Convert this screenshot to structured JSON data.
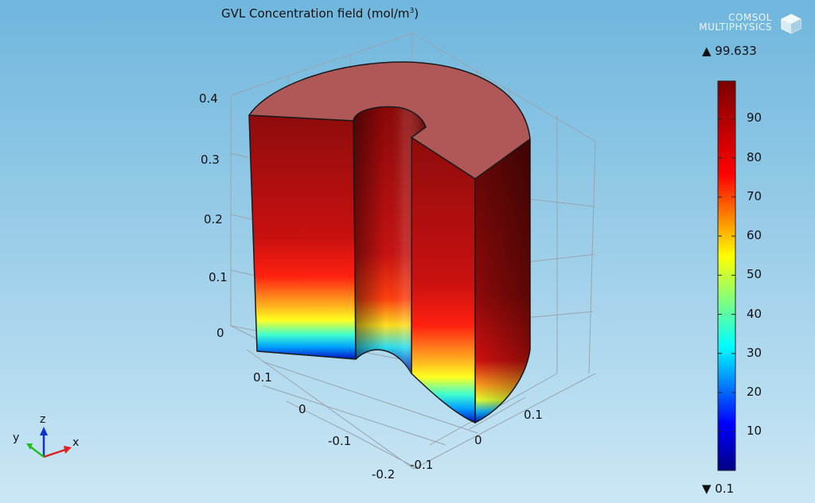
{
  "chart_data": {
    "type": "surface-3d",
    "title": "GVL Concentration field (mol/m",
    "title_unit_exponent": "3",
    "colorbar": {
      "colormap": "rainbow",
      "min": 0.1,
      "max": 99.633,
      "min_label": "▼ 0.1",
      "max_label": "▲ 99.633",
      "ticks": [
        10,
        20,
        30,
        40,
        50,
        60,
        70,
        80,
        90
      ],
      "tick_labels": [
        "10",
        "20",
        "30",
        "40",
        "50",
        "60",
        "70",
        "80",
        "90"
      ]
    },
    "axes": {
      "z_ticks": [
        "0",
        "0.1",
        "0.2",
        "0.3",
        "0.4"
      ],
      "y_ticks": [
        "0.1",
        "0",
        "-0.1",
        "-0.2"
      ],
      "x_ticks": [
        "-0.1",
        "0",
        "0.1"
      ],
      "z_range": [
        0,
        0.4
      ],
      "grid": true
    },
    "triad": {
      "x": "x",
      "y": "y",
      "z": "z"
    },
    "geometry": "annular cylinder with a quarter sector removed; concentration increases with height",
    "color_at_height": [
      {
        "z": 0.0,
        "value": 0.1
      },
      {
        "z": 0.03,
        "value": 30
      },
      {
        "z": 0.07,
        "value": 60
      },
      {
        "z": 0.12,
        "value": 82
      },
      {
        "z": 0.2,
        "value": 92
      },
      {
        "z": 0.38,
        "value": 99.633
      }
    ]
  },
  "watermark": {
    "line1": "COMSOL",
    "line2": "MULTIPHYSICS"
  }
}
